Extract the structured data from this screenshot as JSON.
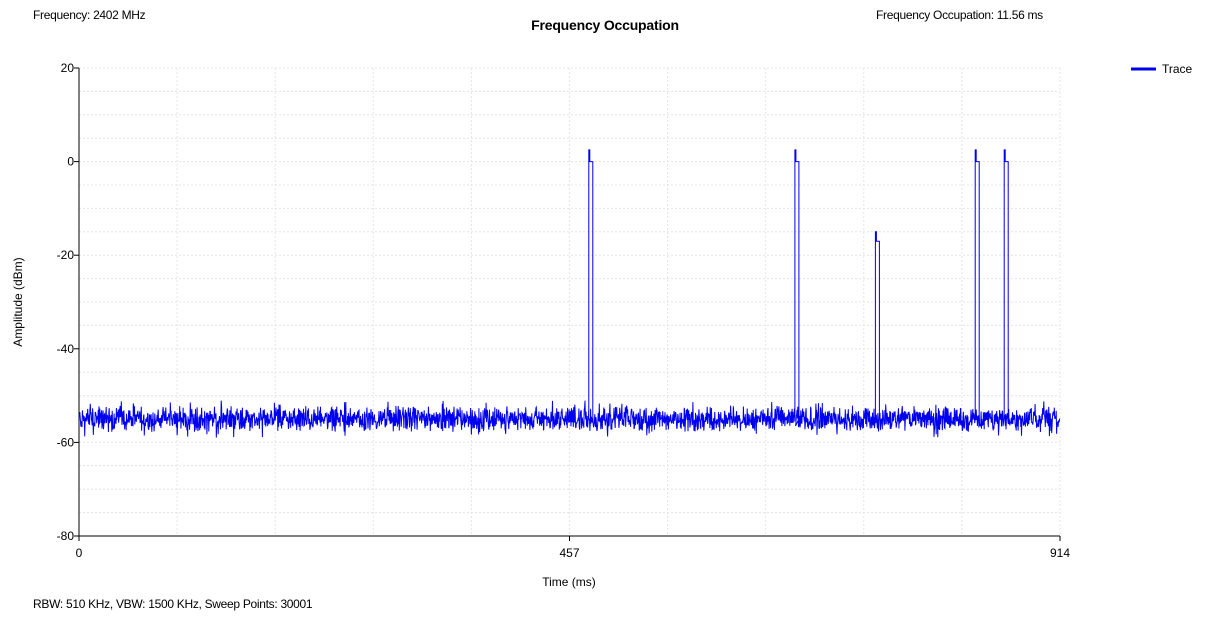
{
  "header": {
    "frequency": "Frequency: 2402 MHz",
    "occupation": "Frequency Occupation: 11.56 ms"
  },
  "footer": {
    "settings": "RBW: 510 KHz,  VBW: 1500 KHz,  Sweep Points: 30001"
  },
  "colors": {
    "trace": "#0000ee",
    "grid": "#e4e4e4",
    "axis": "#000000"
  },
  "chart_data": {
    "type": "line",
    "title": "Frequency Occupation",
    "xlabel": "Time (ms)",
    "ylabel": "Amplitude (dBm)",
    "xlim": [
      0,
      914
    ],
    "ylim": [
      -80,
      20
    ],
    "x_ticks": [
      0,
      457,
      914
    ],
    "y_ticks": [
      20,
      0,
      -20,
      -40,
      -60,
      -80
    ],
    "grid": true,
    "legend": {
      "position": "top-right",
      "entries": [
        "Trace"
      ]
    },
    "series": [
      {
        "name": "Trace",
        "noise_floor_dbm": -55,
        "noise_range_dbm": [
          -59,
          -52
        ],
        "pulses": [
          {
            "x": 475,
            "peak": 2.5,
            "plateau": 0
          },
          {
            "x": 667,
            "peak": 2.5,
            "plateau": 0
          },
          {
            "x": 742,
            "peak": -15,
            "plateau": -17
          },
          {
            "x": 835,
            "peak": 2.5,
            "plateau": 0
          },
          {
            "x": 862,
            "peak": 2.5,
            "plateau": 0
          }
        ]
      }
    ]
  }
}
